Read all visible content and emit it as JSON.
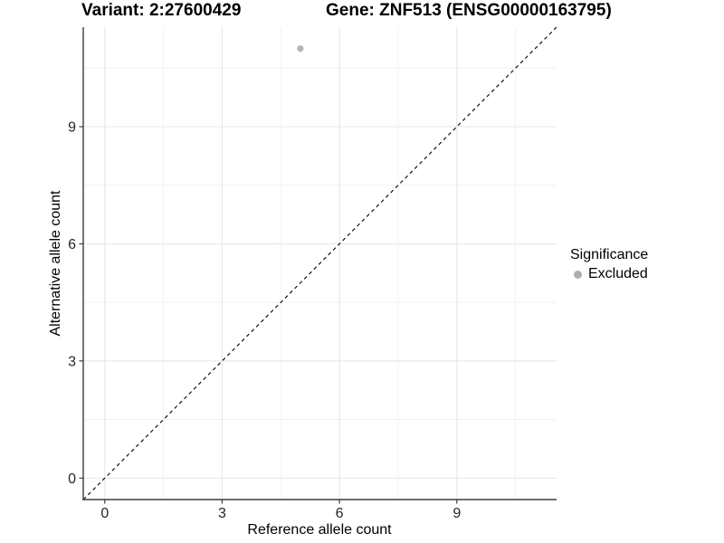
{
  "chart_data": {
    "type": "scatter",
    "title_left": "Variant: 2:27600429",
    "title_right": "Gene: ZNF513 (ENSG00000163795)",
    "xlabel": "Reference allele count",
    "ylabel": "Alternative allele count",
    "xlim": [
      -0.55,
      11.55
    ],
    "ylim": [
      -0.55,
      11.55
    ],
    "x_major_ticks": [
      0,
      3,
      6,
      9
    ],
    "y_major_ticks": [
      0,
      3,
      6,
      9
    ],
    "x_minor_gridlines": [
      1.5,
      4.5,
      7.5,
      10.5
    ],
    "y_minor_gridlines": [
      1.5,
      4.5,
      7.5,
      10.5
    ],
    "grid": true,
    "identity_line": {
      "style": "dashed",
      "color": "#111111",
      "span": [
        -0.55,
        11.55
      ]
    },
    "series": [
      {
        "name": "Excluded",
        "color": "#b5b5b5",
        "points": [
          {
            "x": 5,
            "y": 11
          }
        ]
      }
    ],
    "legend": {
      "title": "Significance",
      "position": "right",
      "entries": [
        {
          "label": "Excluded",
          "color": "#aeaeae"
        }
      ]
    },
    "colors": {
      "grid_major": "#e7e7e7",
      "grid_minor": "#f1f1f1",
      "axis": "#3c3c3c",
      "tick_label": "#262626"
    }
  }
}
